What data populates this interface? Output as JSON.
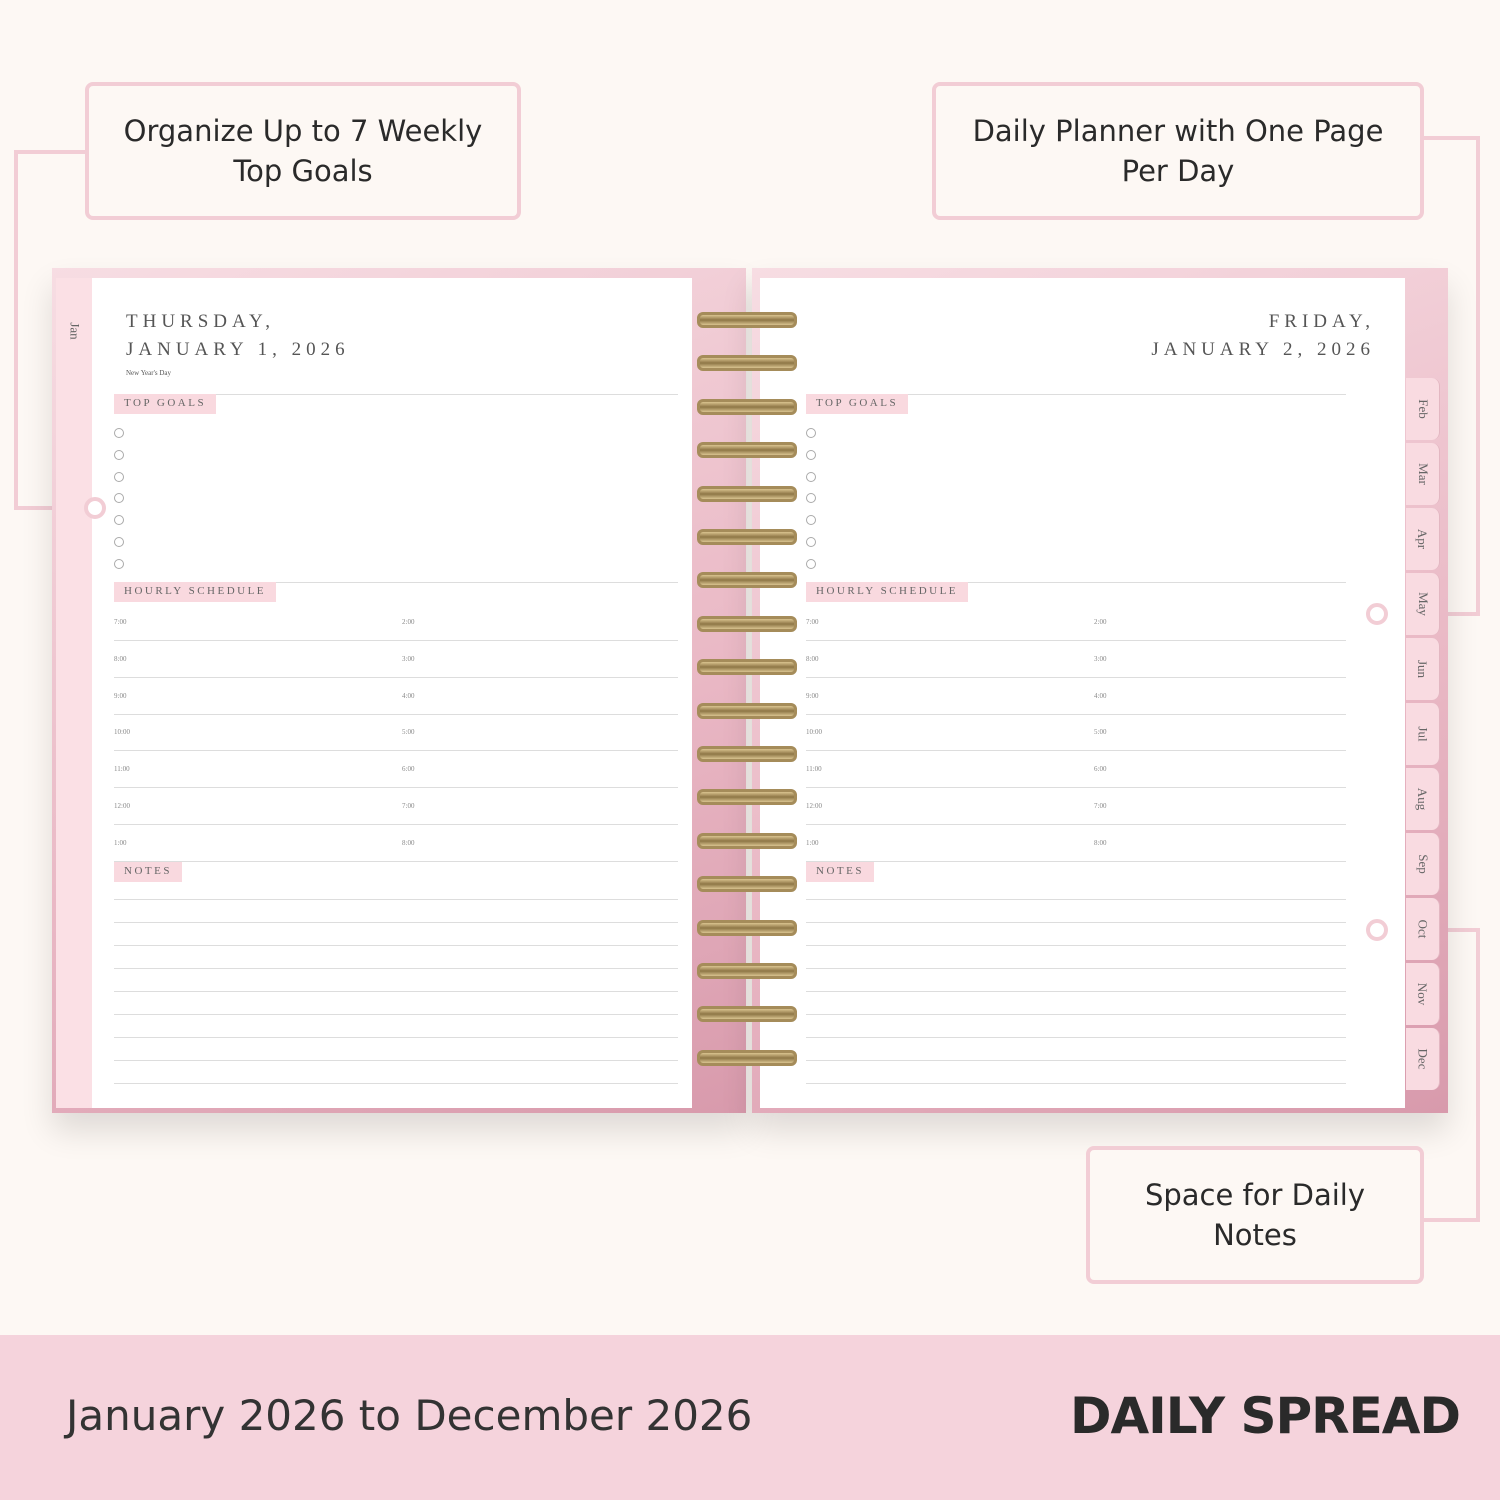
{
  "callouts": {
    "top_left": "Organize Up to 7 Weekly Top Goals",
    "top_right": "Daily Planner with One Page Per Day",
    "bottom_right": "Space for Daily Notes"
  },
  "left_page": {
    "weekday": "THURSDAY,",
    "date": "JANUARY 1, 2026",
    "holiday": "New Year's Day",
    "tab": "Jan"
  },
  "right_page": {
    "weekday": "FRIDAY,",
    "date": "JANUARY 2, 2026"
  },
  "sections": {
    "top_goals": "TOP GOALS",
    "hourly": "HOURLY SCHEDULE",
    "notes": "NOTES"
  },
  "goal_count": 7,
  "times_left_col": [
    "7:00",
    "8:00",
    "9:00",
    "10:00",
    "11:00",
    "12:00",
    "1:00"
  ],
  "times_right_col": [
    "2:00",
    "3:00",
    "4:00",
    "5:00",
    "6:00",
    "7:00",
    "8:00"
  ],
  "month_tabs": [
    "Feb",
    "Mar",
    "Apr",
    "May",
    "Jun",
    "Jul",
    "Aug",
    "Sep",
    "Oct",
    "Nov",
    "Dec"
  ],
  "footer": {
    "range": "January 2026 to December 2026",
    "title": "DAILY SPREAD"
  },
  "colors": {
    "accent_pink": "#f2cdd5",
    "band": "#f5d3dc",
    "label_bg": "#f9d9df",
    "ring_gold": "#a58c5a"
  }
}
